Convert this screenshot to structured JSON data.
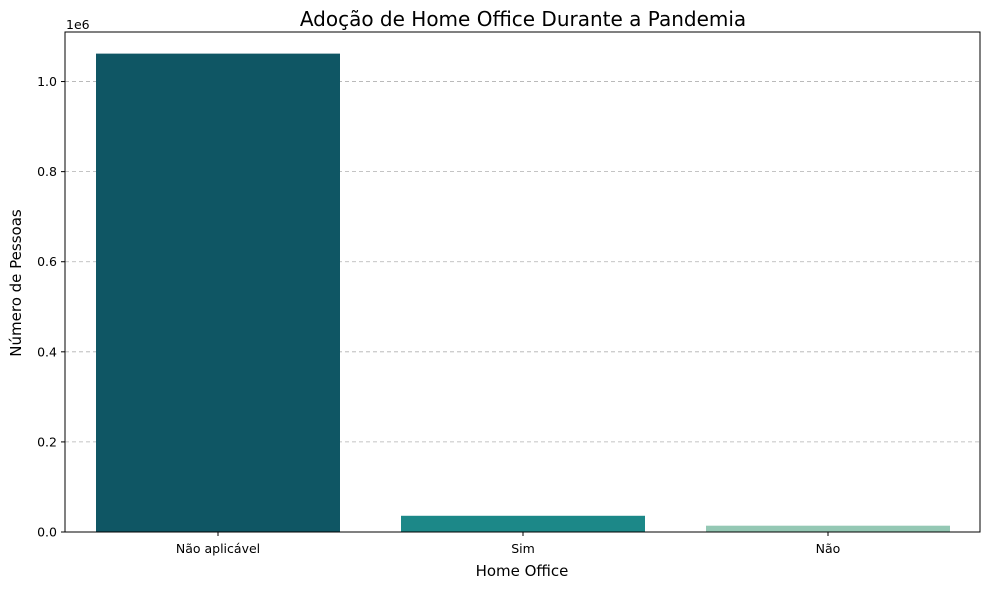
{
  "chart_data": {
    "type": "bar",
    "title": "Adoção de Home Office Durante a Pandemia",
    "xlabel": "Home Office",
    "ylabel": "Número de Pessoas",
    "categories": [
      "Não aplicável",
      "Sim",
      "Não"
    ],
    "values": [
      1062000,
      36000,
      14000
    ],
    "colors": [
      "#0f5664",
      "#1c8888",
      "#94c8b4"
    ],
    "ylim": [
      0,
      1110000
    ],
    "yticks": [
      0,
      200000,
      400000,
      600000,
      800000,
      1000000
    ],
    "ytick_labels": [
      "0.0",
      "0.2",
      "0.4",
      "0.6",
      "0.8",
      "1.0"
    ],
    "offset_text": "1e6",
    "grid": "y-dashed",
    "legend": "none"
  }
}
